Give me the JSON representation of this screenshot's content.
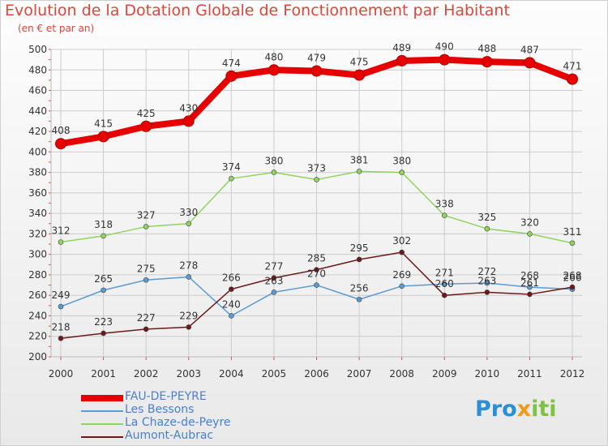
{
  "title": "Evolution de la Dotation Globale de Fonctionnement par Habitant",
  "subtitle": "(en € et par an)",
  "logo": "Proxiti",
  "colors": {
    "title": "#e0443a",
    "grid": "#cccccc",
    "axis_ticks": "#e0443a",
    "legend_text": "#4a7fd0"
  },
  "chart_data": {
    "type": "line",
    "title": "Evolution de la Dotation Globale de Fonctionnement par Habitant",
    "subtitle": "(en € et par an)",
    "x": [
      "2000",
      "2001",
      "2002",
      "2003",
      "2004",
      "2005",
      "2006",
      "2007",
      "2008",
      "2009",
      "2010",
      "2011",
      "2012"
    ],
    "ylim": [
      200,
      500
    ],
    "yticks": [
      200,
      220,
      240,
      260,
      280,
      300,
      320,
      340,
      360,
      380,
      400,
      420,
      440,
      460,
      480,
      500
    ],
    "grid": true,
    "legend_position": "bottom-left",
    "series": [
      {
        "name": "FAU-DE-PEYRE",
        "color": "#e60000",
        "values": [
          408,
          415,
          425,
          430,
          474,
          480,
          479,
          475,
          489,
          490,
          488,
          487,
          471
        ],
        "labels": [
          "408",
          "415",
          "425",
          "430",
          "474",
          "480",
          "479",
          "475",
          "489",
          "490",
          "488",
          "487",
          "471"
        ]
      },
      {
        "name": "Les Bessons",
        "color": "#5b9bd5",
        "values": [
          249,
          265,
          275,
          278,
          240,
          263,
          270,
          256,
          269,
          271,
          272,
          268,
          266
        ],
        "labels": [
          "249",
          "265",
          "275",
          "278",
          "240",
          "263",
          "270",
          "256",
          "269",
          "271",
          "272",
          "268",
          "266"
        ]
      },
      {
        "name": "La Chaze-de-Peyre",
        "color": "#8fd45f",
        "values": [
          312,
          318,
          327,
          330,
          374,
          380,
          373,
          381,
          380,
          338,
          325,
          320,
          311
        ],
        "labels": [
          "312",
          "318",
          "327",
          "330",
          "374",
          "380",
          "373",
          "381",
          "380",
          "338",
          "325",
          "320",
          "311"
        ]
      },
      {
        "name": "Aumont-Aubrac",
        "color": "#6b1a1a",
        "values": [
          218,
          223,
          227,
          229,
          266,
          277,
          285,
          295,
          302,
          260,
          263,
          261,
          268
        ],
        "labels": [
          "218",
          "223",
          "227",
          "229",
          "266",
          "277",
          "285",
          "295",
          "302",
          "260",
          "263",
          "261",
          "268"
        ]
      }
    ]
  }
}
